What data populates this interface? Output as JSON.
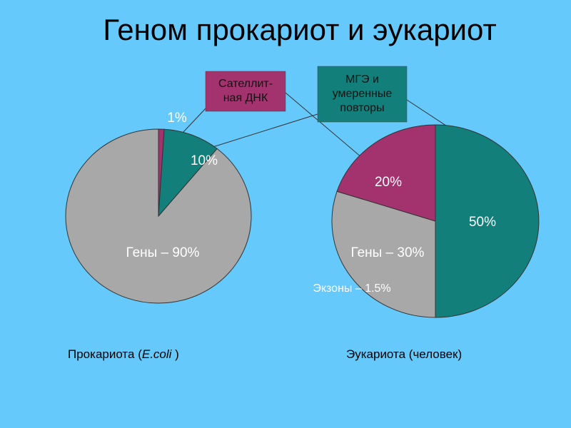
{
  "title": "Геном прокариот и эукариот",
  "legend": [
    {
      "lines": [
        "Сателлит-",
        "ная ДНК"
      ],
      "color": "#a3336e"
    },
    {
      "lines": [
        "МГЭ и",
        "умеренные",
        "повторы"
      ],
      "color": "#137f7a"
    }
  ],
  "chart_data": [
    {
      "type": "pie",
      "values": [
        1,
        10,
        90
      ],
      "value_labels": [
        "1%",
        "10%",
        "Гены – 90%"
      ],
      "colors": [
        "#a3336e",
        "#137f7a",
        "#a8a8a8"
      ],
      "caption": [
        "Прокариота  (",
        "E.coli",
        " )"
      ]
    },
    {
      "type": "pie",
      "values": [
        50,
        30,
        20
      ],
      "value_labels": [
        "50%",
        "Гены – 30%",
        "20%"
      ],
      "colors": [
        "#137f7a",
        "#a8a8a8",
        "#a3336e"
      ],
      "annotation": "Экзоны – 1.5%",
      "caption": [
        "Эукариота  (человек)"
      ]
    }
  ]
}
